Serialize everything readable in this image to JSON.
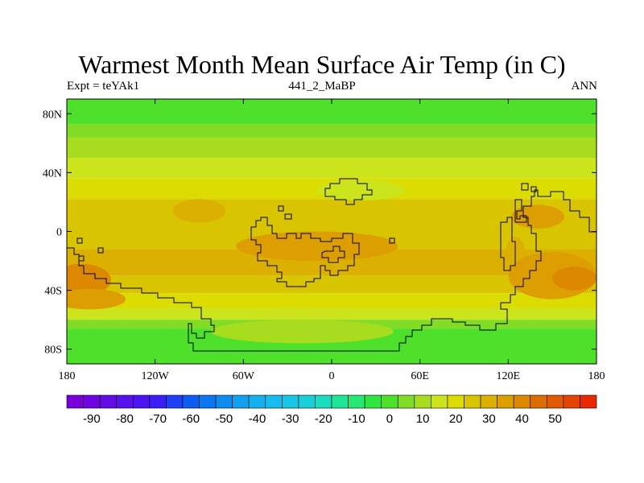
{
  "title": "Warmest Month Mean Surface Air Temp (in C)",
  "subtitle_left": "Expt = teYAk1",
  "subtitle_center": "441_2_MaBP",
  "subtitle_right": "ANN",
  "axes": {
    "x_range": [
      -180,
      180
    ],
    "y_range": [
      -90,
      90
    ],
    "x_ticks": [
      {
        "value": -180,
        "label": "180"
      },
      {
        "value": -120,
        "label": "120W"
      },
      {
        "value": -60,
        "label": "60W"
      },
      {
        "value": 0,
        "label": "0"
      },
      {
        "value": 60,
        "label": "60E"
      },
      {
        "value": 120,
        "label": "120E"
      },
      {
        "value": 180,
        "label": "180"
      }
    ],
    "y_ticks": [
      {
        "value": 80,
        "label": "80N"
      },
      {
        "value": 40,
        "label": "40N"
      },
      {
        "value": 0,
        "label": "0"
      },
      {
        "value": -40,
        "label": "40S"
      },
      {
        "value": -80,
        "label": "80S"
      }
    ]
  },
  "colorbar": {
    "min": -95,
    "step": 5,
    "colors": [
      "#7a00d9",
      "#6f06e0",
      "#640ce6",
      "#5810ec",
      "#4c14f2",
      "#3a1ef5",
      "#2040f5",
      "#0e5cf2",
      "#0a76ef",
      "#0c8cee",
      "#10a0ef",
      "#14b0ee",
      "#16bcec",
      "#18c6e6",
      "#1ad0d8",
      "#1cdcbf",
      "#20e49a",
      "#26e872",
      "#2ee640",
      "#4ee02a",
      "#80dc24",
      "#a8dc1e",
      "#cce41c",
      "#dcdc00",
      "#d8c400",
      "#dcb000",
      "#dc9e00",
      "#dc8800",
      "#dc6e00",
      "#e05a00",
      "#e44400",
      "#e82800"
    ],
    "labels": [
      {
        "value": -90,
        "text": "-90"
      },
      {
        "value": -80,
        "text": "-80"
      },
      {
        "value": -70,
        "text": "-70"
      },
      {
        "value": -60,
        "text": "-60"
      },
      {
        "value": -50,
        "text": "-50"
      },
      {
        "value": -40,
        "text": "-40"
      },
      {
        "value": -30,
        "text": "-30"
      },
      {
        "value": -20,
        "text": "-20"
      },
      {
        "value": -10,
        "text": "-10"
      },
      {
        "value": 0,
        "text": "0"
      },
      {
        "value": 10,
        "text": "10"
      },
      {
        "value": 20,
        "text": "20"
      },
      {
        "value": 30,
        "text": "30"
      },
      {
        "value": 40,
        "text": "40"
      },
      {
        "value": 50,
        "text": "50"
      }
    ]
  },
  "field": {
    "zonal_bands": [
      {
        "lat_top": 90,
        "lat_bottom": 73,
        "value": 2
      },
      {
        "lat_top": 73,
        "lat_bottom": 64,
        "value": 8
      },
      {
        "lat_top": 64,
        "lat_bottom": 50,
        "value": 13
      },
      {
        "lat_top": 50,
        "lat_bottom": 36,
        "value": 18
      },
      {
        "lat_top": 36,
        "lat_bottom": 22,
        "value": 22
      },
      {
        "lat_top": 22,
        "lat_bottom": -12,
        "value": 28
      },
      {
        "lat_top": -12,
        "lat_bottom": -30,
        "value": 33
      },
      {
        "lat_top": -30,
        "lat_bottom": -42,
        "value": 28
      },
      {
        "lat_top": -42,
        "lat_bottom": -52,
        "value": 22
      },
      {
        "lat_top": -52,
        "lat_bottom": -60,
        "value": 16
      },
      {
        "lat_top": -60,
        "lat_bottom": -66,
        "value": 8
      },
      {
        "lat_top": -66,
        "lat_bottom": -90,
        "value": 2
      }
    ],
    "patches": [
      {
        "lon": -90,
        "lat": 14,
        "rx": 18,
        "ry": 8,
        "value": 33
      },
      {
        "lon": -10,
        "lat": -10,
        "rx": 55,
        "ry": 10,
        "value": 36
      },
      {
        "lon": 150,
        "lat": -30,
        "rx": 30,
        "ry": 16,
        "value": 38
      },
      {
        "lon": 165,
        "lat": -32,
        "rx": 15,
        "ry": 8,
        "value": 43
      },
      {
        "lon": -170,
        "lat": -33,
        "rx": 20,
        "ry": 11,
        "value": 43
      },
      {
        "lon": -165,
        "lat": -46,
        "rx": 25,
        "ry": 7,
        "value": 38
      },
      {
        "lon": 140,
        "lat": 10,
        "rx": 18,
        "ry": 8,
        "value": 36
      },
      {
        "lon": 125,
        "lat": -12,
        "rx": 6,
        "ry": 8,
        "value": 33
      },
      {
        "lon": -20,
        "lat": -68,
        "rx": 62,
        "ry": 8,
        "value": 13
      },
      {
        "lon": 20,
        "lat": 28,
        "rx": 30,
        "ry": 7,
        "value": 18
      }
    ]
  }
}
